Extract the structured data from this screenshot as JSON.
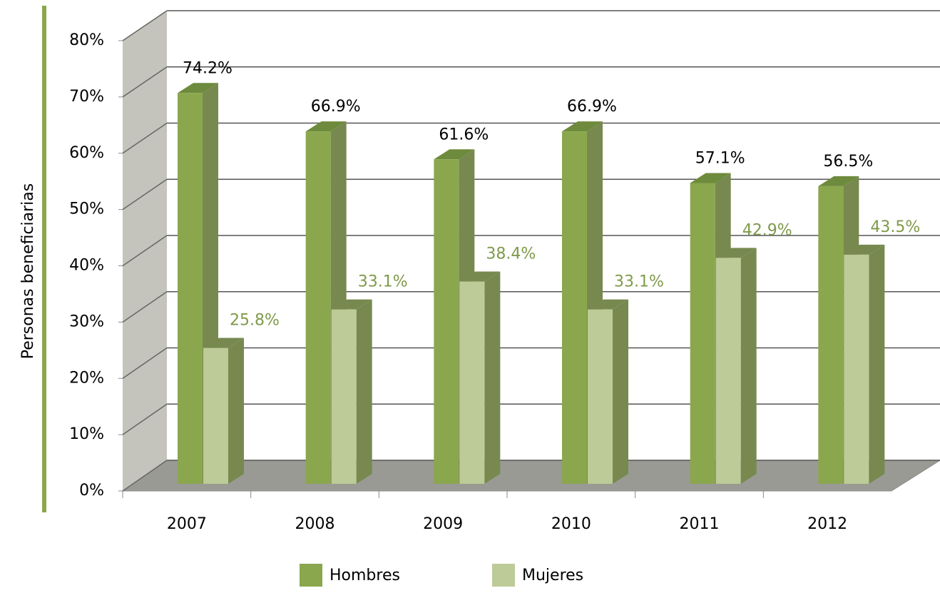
{
  "chart_data": {
    "type": "bar3d",
    "y_axis_label": "Personas beneficiarias",
    "categories": [
      "2007",
      "2008",
      "2009",
      "2010",
      "2011",
      "2012"
    ],
    "series": [
      {
        "name": "Hombres",
        "color": "#8aa74e",
        "values": [
          74.2,
          66.9,
          61.6,
          66.9,
          57.1,
          56.5
        ],
        "value_labels": [
          "74.2%",
          "66.9%",
          "61.6%",
          "66.9%",
          "57.1%",
          "56.5%"
        ]
      },
      {
        "name": "Mujeres",
        "color": "#bccb97",
        "values": [
          25.8,
          33.1,
          38.4,
          33.1,
          42.9,
          43.5
        ],
        "value_labels": [
          "25.8%",
          "33.1%",
          "38.4%",
          "33.1%",
          "42.9%",
          "43.5%"
        ]
      }
    ],
    "ylim": [
      0,
      80
    ],
    "yticks": [
      {
        "value": 0,
        "label": "0%"
      },
      {
        "value": 10,
        "label": "10%"
      },
      {
        "value": 20,
        "label": "20%"
      },
      {
        "value": 30,
        "label": "30%"
      },
      {
        "value": 40,
        "label": "40%"
      },
      {
        "value": 50,
        "label": "50%"
      },
      {
        "value": 60,
        "label": "60%"
      },
      {
        "value": 70,
        "label": "70%"
      },
      {
        "value": 80,
        "label": "80%"
      }
    ],
    "grid": true
  }
}
